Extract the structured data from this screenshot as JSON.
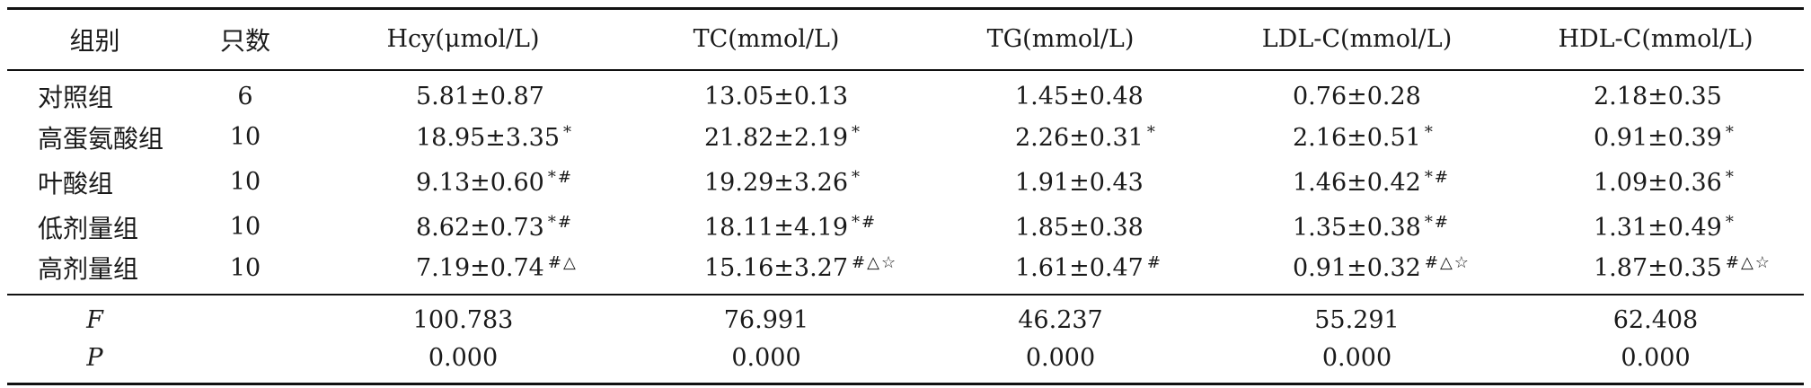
{
  "table": {
    "headers": [
      "组别",
      "只数",
      "Hcy(μmol/L)",
      "TC(mmol/L)",
      "TG(mmol/L)",
      "LDL-C(mmol/L)",
      "HDL-C(mmol/L)"
    ],
    "rows": [
      {
        "group": "对照组",
        "n": "6",
        "cells": [
          {
            "value": "5.81±0.87",
            "mark": ""
          },
          {
            "value": "13.05±0.13",
            "mark": ""
          },
          {
            "value": "1.45±0.48",
            "mark": ""
          },
          {
            "value": "0.76±0.28",
            "mark": ""
          },
          {
            "value": "2.18±0.35",
            "mark": ""
          }
        ]
      },
      {
        "group": "高蛋氨酸组",
        "n": "10",
        "cells": [
          {
            "value": "18.95±3.35",
            "mark": "*"
          },
          {
            "value": "21.82±2.19",
            "mark": "*"
          },
          {
            "value": "2.26±0.31",
            "mark": "*"
          },
          {
            "value": "2.16±0.51",
            "mark": "*"
          },
          {
            "value": "0.91±0.39",
            "mark": "*"
          }
        ]
      },
      {
        "group": "叶酸组",
        "n": "10",
        "cells": [
          {
            "value": "9.13±0.60",
            "mark": "*#"
          },
          {
            "value": "19.29±3.26",
            "mark": "*"
          },
          {
            "value": "1.91±0.43",
            "mark": ""
          },
          {
            "value": "1.46±0.42",
            "mark": "*#"
          },
          {
            "value": "1.09±0.36",
            "mark": "*"
          }
        ]
      },
      {
        "group": "低剂量组",
        "n": "10",
        "cells": [
          {
            "value": "8.62±0.73",
            "mark": "*#"
          },
          {
            "value": "18.11±4.19",
            "mark": "*#"
          },
          {
            "value": "1.85±0.38",
            "mark": ""
          },
          {
            "value": "1.35±0.38",
            "mark": "*#"
          },
          {
            "value": "1.31±0.49",
            "mark": "*"
          }
        ]
      },
      {
        "group": "高剂量组",
        "n": "10",
        "cells": [
          {
            "value": "7.19±0.74",
            "mark": "#△"
          },
          {
            "value": "15.16±3.27",
            "mark": "#△☆"
          },
          {
            "value": "1.61±0.47",
            "mark": "#"
          },
          {
            "value": "0.91±0.32",
            "mark": "#△☆"
          },
          {
            "value": "1.87±0.35",
            "mark": "#△☆"
          }
        ]
      }
    ],
    "stats": [
      {
        "label": "F",
        "values": [
          "100.783",
          "76.991",
          "46.237",
          "55.291",
          "62.408"
        ]
      },
      {
        "label": "P",
        "values": [
          "0.000",
          "0.000",
          "0.000",
          "0.000",
          "0.000"
        ]
      }
    ]
  }
}
